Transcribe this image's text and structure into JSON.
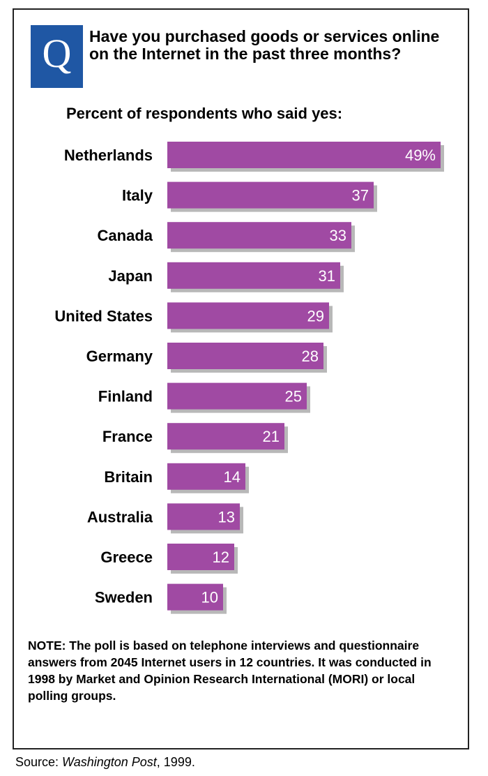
{
  "badge_letter": "Q",
  "question": "Have you purchased goods or services online on the Internet in the past three months?",
  "subtitle": "Percent of respondents who said yes:",
  "note": "NOTE: The poll is based on telephone interviews and questionnaire answers from 2045 Internet users in 12 countries. It was conducted in 1998 by Market and Opinion Research International (MORI) or local polling groups.",
  "source": {
    "label": "Source: ",
    "publication": "Washington Post",
    "year_suffix": ", 1999."
  },
  "colors": {
    "bar": "#a04aa3",
    "bar_shadow": "#b8b8b8",
    "badge": "#1f57a4"
  },
  "chart_data": {
    "type": "bar",
    "orientation": "horizontal",
    "title": "Have you purchased goods or services online on the Internet in the past three months?",
    "subtitle": "Percent of respondents who said yes:",
    "categories": [
      "Netherlands",
      "Italy",
      "Canada",
      "Japan",
      "United States",
      "Germany",
      "Finland",
      "France",
      "Britain",
      "Australia",
      "Greece",
      "Sweden"
    ],
    "values": [
      49,
      37,
      33,
      31,
      29,
      28,
      25,
      21,
      14,
      13,
      12,
      10
    ],
    "data_labels": [
      "49%",
      "37",
      "33",
      "31",
      "29",
      "28",
      "25",
      "21",
      "14",
      "13",
      "12",
      "10"
    ],
    "unit": "%",
    "xlim": [
      0,
      50
    ],
    "grid": false,
    "legend": "none"
  }
}
